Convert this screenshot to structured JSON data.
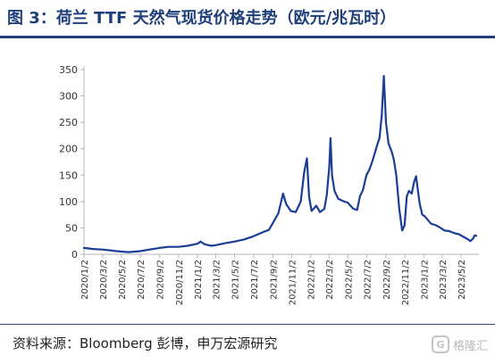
{
  "header": {
    "title": "图 3：荷兰 TTF 天然气现货价格走势（欧元/兆瓦时）"
  },
  "footer": {
    "source": "资料来源：Bloomberg 彭博，申万宏源研究",
    "watermark_text": "格隆汇",
    "watermark_icon": "G"
  },
  "colors": {
    "title": "#1f3f7a",
    "line": "#1c3d96",
    "axis": "#b5b5b5"
  },
  "chart_data": {
    "type": "line",
    "title": "图 3：荷兰 TTF 天然气现货价格走势（欧元/兆瓦时）",
    "xlabel": "",
    "ylabel": "",
    "ylim": [
      0,
      350
    ],
    "yticks": [
      0,
      50,
      100,
      150,
      200,
      250,
      300,
      350
    ],
    "grid": false,
    "legend": "none",
    "x_tick_labels": [
      "2020/1/2",
      "2020/3/2",
      "2020/5/2",
      "2020/7/2",
      "2020/9/2",
      "2020/11/2",
      "2021/1/2",
      "2021/3/2",
      "2021/5/2",
      "2021/7/2",
      "2021/9/2",
      "2021/11/2",
      "2022/1/2",
      "2022/3/2",
      "2022/5/2",
      "2022/7/2",
      "2022/9/2",
      "2022/11/2",
      "2023/1/2",
      "2023/3/2",
      "2023/5/2"
    ],
    "series": [
      {
        "x": [
          "2020-01-02",
          "2020-02-01",
          "2020-03-01",
          "2020-04-01",
          "2020-05-01",
          "2020-05-25",
          "2020-06-15",
          "2020-07-01",
          "2020-08-01",
          "2020-09-01",
          "2020-10-01",
          "2020-11-01",
          "2020-12-01",
          "2021-01-02",
          "2021-01-12",
          "2021-01-25",
          "2021-02-15",
          "2021-03-01",
          "2021-04-01",
          "2021-05-01",
          "2021-06-01",
          "2021-07-01",
          "2021-08-01",
          "2021-08-20",
          "2021-09-01",
          "2021-09-20",
          "2021-10-05",
          "2021-10-15",
          "2021-10-30",
          "2021-11-15",
          "2021-12-01",
          "2021-12-12",
          "2021-12-21",
          "2021-12-28",
          "2022-01-05",
          "2022-01-20",
          "2022-02-01",
          "2022-02-15",
          "2022-02-23",
          "2022-03-03",
          "2022-03-07",
          "2022-03-12",
          "2022-03-20",
          "2022-04-01",
          "2022-04-20",
          "2022-05-01",
          "2022-05-20",
          "2022-06-01",
          "2022-06-10",
          "2022-06-20",
          "2022-07-01",
          "2022-07-10",
          "2022-07-20",
          "2022-07-28",
          "2022-08-05",
          "2022-08-12",
          "2022-08-19",
          "2022-08-26",
          "2022-09-02",
          "2022-09-10",
          "2022-09-20",
          "2022-09-27",
          "2022-10-05",
          "2022-10-15",
          "2022-10-24",
          "2022-11-01",
          "2022-11-08",
          "2022-11-15",
          "2022-11-24",
          "2022-12-02",
          "2022-12-08",
          "2022-12-14",
          "2022-12-20",
          "2022-12-28",
          "2023-01-05",
          "2023-01-15",
          "2023-01-25",
          "2023-02-10",
          "2023-02-25",
          "2023-03-10",
          "2023-03-25",
          "2023-04-10",
          "2023-04-25",
          "2023-05-10",
          "2023-05-25",
          "2023-06-01",
          "2023-06-10",
          "2023-06-15",
          "2023-06-20"
        ],
        "values": [
          12,
          10,
          9,
          7,
          5,
          4,
          5,
          6,
          9,
          12,
          14,
          14,
          16,
          20,
          24,
          19,
          16,
          17,
          21,
          24,
          28,
          34,
          42,
          46,
          58,
          78,
          115,
          95,
          82,
          80,
          100,
          155,
          182,
          110,
          82,
          92,
          80,
          86,
          112,
          165,
          220,
          150,
          120,
          105,
          100,
          98,
          86,
          84,
          110,
          122,
          150,
          160,
          176,
          192,
          208,
          220,
          262,
          338,
          250,
          210,
          195,
          180,
          150,
          85,
          45,
          55,
          110,
          120,
          115,
          138,
          148,
          120,
          95,
          75,
          72,
          65,
          58,
          55,
          50,
          45,
          44,
          40,
          38,
          33,
          28,
          25,
          30,
          36,
          35
        ]
      }
    ]
  }
}
